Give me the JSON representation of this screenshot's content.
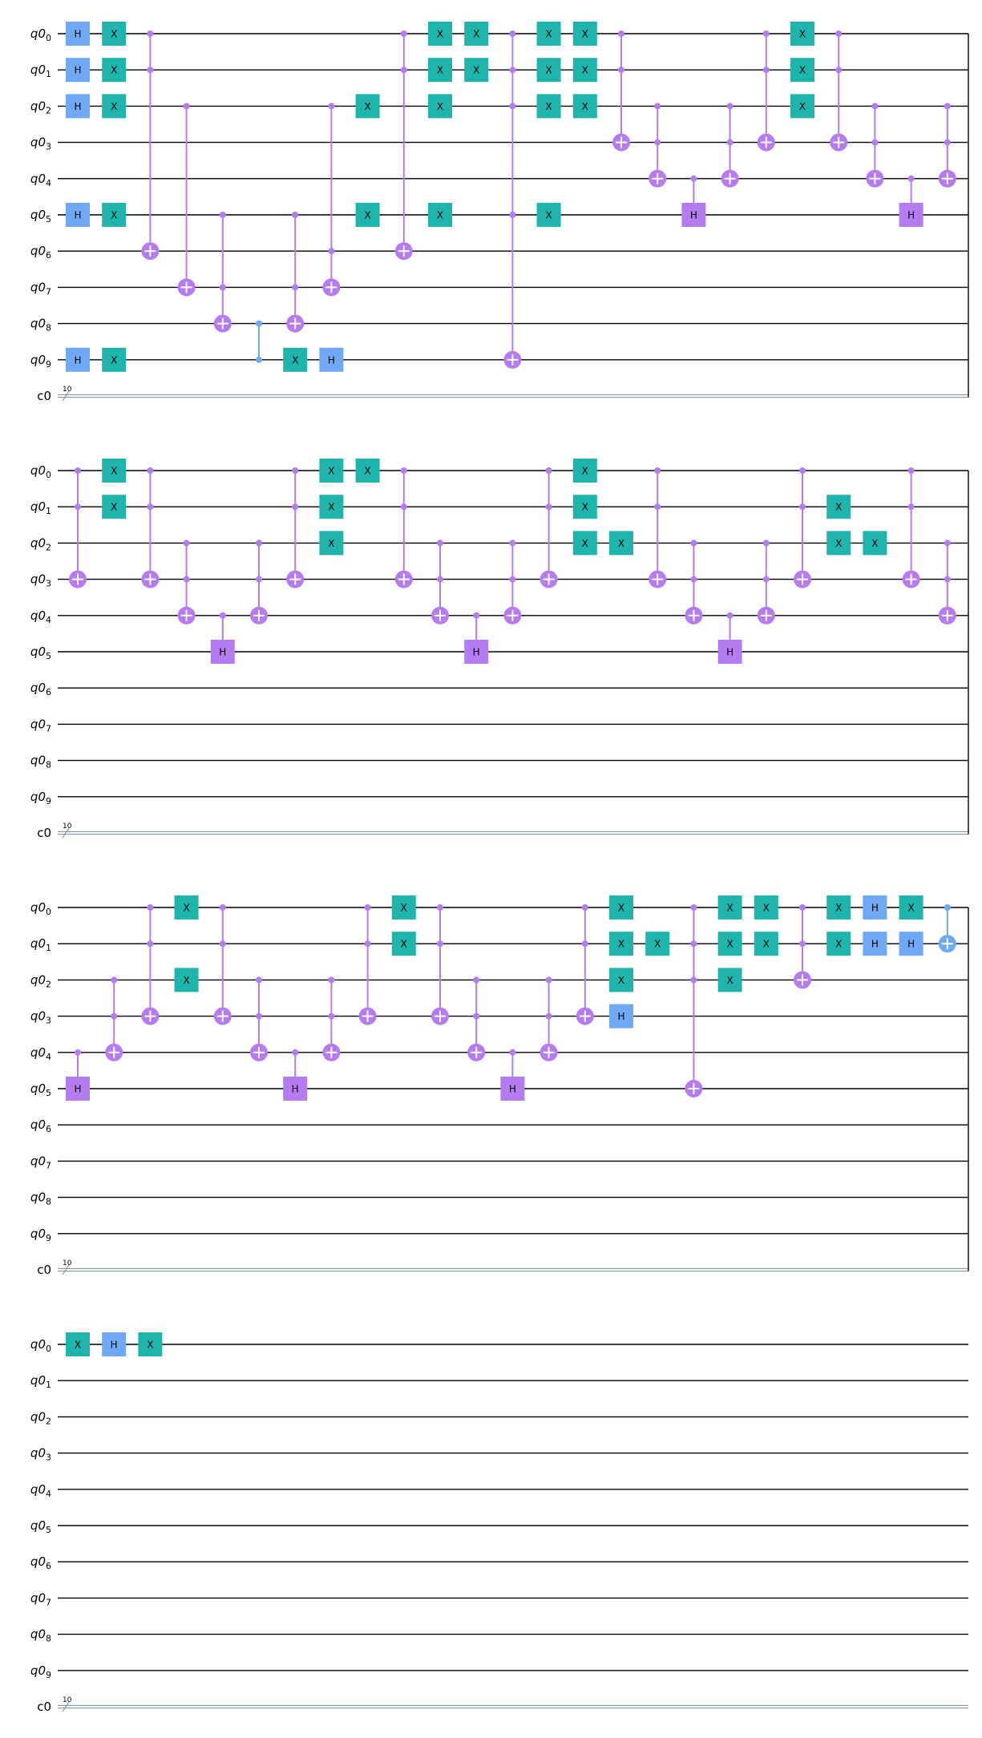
{
  "registers": {
    "qubits": [
      {
        "base": "q0",
        "index": "0"
      },
      {
        "base": "q0",
        "index": "1"
      },
      {
        "base": "q0",
        "index": "2"
      },
      {
        "base": "q0",
        "index": "3"
      },
      {
        "base": "q0",
        "index": "4"
      },
      {
        "base": "q0",
        "index": "5"
      },
      {
        "base": "q0",
        "index": "6"
      },
      {
        "base": "q0",
        "index": "7"
      },
      {
        "base": "q0",
        "index": "8"
      },
      {
        "base": "q0",
        "index": "9"
      }
    ],
    "classical": {
      "label": "c0",
      "size": "10"
    }
  },
  "colors": {
    "x_gate": "#1fb5ad",
    "h_gate": "#6fa8f5",
    "controlled_h": "#b57bf0",
    "cnot": "#b57bf0",
    "cz": "#6fa8f5",
    "cnot_q0_q1": "#6fa8f5"
  },
  "gate_labels": {
    "x": "X",
    "h": "H"
  },
  "sections": [
    {
      "wires": 10,
      "columns": [
        [
          {
            "g": "h",
            "q": 0
          },
          {
            "g": "h",
            "q": 1
          },
          {
            "g": "h",
            "q": 2
          },
          {
            "g": "h",
            "q": 5
          },
          {
            "g": "h",
            "q": 9
          }
        ],
        [
          {
            "g": "x",
            "q": 0
          },
          {
            "g": "x",
            "q": 1
          },
          {
            "g": "x",
            "q": 2
          },
          {
            "g": "x",
            "q": 5
          },
          {
            "g": "x",
            "q": 9
          }
        ],
        [
          {
            "g": "cx",
            "c": [
              0,
              1
            ],
            "t": 6
          }
        ],
        [
          {
            "g": "cx",
            "c": [
              2
            ],
            "t": 7
          }
        ],
        [
          {
            "g": "cx",
            "c": [
              5,
              7
            ],
            "t": 8
          }
        ],
        [
          {
            "g": "cz",
            "q": [
              8,
              9
            ]
          }
        ],
        [
          {
            "g": "cx",
            "c": [
              5,
              7
            ],
            "t": 8
          },
          {
            "g": "x",
            "q": 9
          }
        ],
        [
          {
            "g": "cx",
            "c": [
              2,
              6
            ],
            "t": 7
          },
          {
            "g": "h",
            "q": 9
          }
        ],
        [
          {
            "g": "x",
            "q": 2
          },
          {
            "g": "x",
            "q": 5
          }
        ],
        [
          {
            "g": "cx",
            "c": [
              0,
              1
            ],
            "t": 6
          }
        ],
        [
          {
            "g": "x",
            "q": 0
          },
          {
            "g": "x",
            "q": 1
          },
          {
            "g": "x",
            "q": 2
          },
          {
            "g": "x",
            "q": 5
          }
        ],
        [
          {
            "g": "x",
            "q": 0
          },
          {
            "g": "x",
            "q": 1
          }
        ],
        [
          {
            "g": "cx",
            "c": [
              0,
              1,
              2,
              5
            ],
            "t": 9
          }
        ],
        [
          {
            "g": "x",
            "q": 0
          },
          {
            "g": "x",
            "q": 1
          },
          {
            "g": "x",
            "q": 2
          },
          {
            "g": "x",
            "q": 5
          }
        ],
        [
          {
            "g": "x",
            "q": 0
          },
          {
            "g": "x",
            "q": 1
          },
          {
            "g": "x",
            "q": 2
          }
        ],
        [
          {
            "g": "cx",
            "c": [
              0,
              1
            ],
            "t": 3
          }
        ],
        [
          {
            "g": "cx",
            "c": [
              2,
              3
            ],
            "t": 4
          }
        ],
        [
          {
            "g": "ch",
            "c": [
              4
            ],
            "t": 5
          }
        ],
        [
          {
            "g": "cx",
            "c": [
              2,
              3
            ],
            "t": 4
          }
        ],
        [
          {
            "g": "cx",
            "c": [
              0,
              1
            ],
            "t": 3
          }
        ],
        [
          {
            "g": "x",
            "q": 0
          },
          {
            "g": "x",
            "q": 1
          },
          {
            "g": "x",
            "q": 2
          }
        ],
        [
          {
            "g": "cx",
            "c": [
              0,
              1
            ],
            "t": 3
          }
        ],
        [
          {
            "g": "cx",
            "c": [
              2,
              3
            ],
            "t": 4
          }
        ],
        [
          {
            "g": "ch",
            "c": [
              4
            ],
            "t": 5
          }
        ],
        [
          {
            "g": "cx",
            "c": [
              2,
              3
            ],
            "t": 4
          }
        ]
      ]
    },
    {
      "wires": 10,
      "columns": [
        [
          {
            "g": "cx",
            "c": [
              0,
              1
            ],
            "t": 3
          }
        ],
        [
          {
            "g": "x",
            "q": 0
          },
          {
            "g": "x",
            "q": 1
          }
        ],
        [
          {
            "g": "cx",
            "c": [
              0,
              1
            ],
            "t": 3
          }
        ],
        [
          {
            "g": "cx",
            "c": [
              2,
              3
            ],
            "t": 4
          }
        ],
        [
          {
            "g": "ch",
            "c": [
              4
            ],
            "t": 5
          }
        ],
        [
          {
            "g": "cx",
            "c": [
              2,
              3
            ],
            "t": 4
          }
        ],
        [
          {
            "g": "cx",
            "c": [
              0,
              1
            ],
            "t": 3
          }
        ],
        [
          {
            "g": "x",
            "q": 0
          },
          {
            "g": "x",
            "q": 1
          },
          {
            "g": "x",
            "q": 2
          }
        ],
        [
          {
            "g": "x",
            "q": 0
          }
        ],
        [
          {
            "g": "cx",
            "c": [
              0,
              1
            ],
            "t": 3
          }
        ],
        [
          {
            "g": "cx",
            "c": [
              2,
              3
            ],
            "t": 4
          }
        ],
        [
          {
            "g": "ch",
            "c": [
              4
            ],
            "t": 5
          }
        ],
        [
          {
            "g": "cx",
            "c": [
              2,
              3
            ],
            "t": 4
          }
        ],
        [
          {
            "g": "cx",
            "c": [
              0,
              1
            ],
            "t": 3
          }
        ],
        [
          {
            "g": "x",
            "q": 0
          },
          {
            "g": "x",
            "q": 1
          },
          {
            "g": "x",
            "q": 2
          }
        ],
        [
          {
            "g": "x",
            "q": 2
          }
        ],
        [
          {
            "g": "cx",
            "c": [
              0,
              1
            ],
            "t": 3
          }
        ],
        [
          {
            "g": "cx",
            "c": [
              2,
              3
            ],
            "t": 4
          }
        ],
        [
          {
            "g": "ch",
            "c": [
              4
            ],
            "t": 5
          }
        ],
        [
          {
            "g": "cx",
            "c": [
              2,
              3
            ],
            "t": 4
          }
        ],
        [
          {
            "g": "cx",
            "c": [
              0,
              1
            ],
            "t": 3
          }
        ],
        [
          {
            "g": "x",
            "q": 1
          },
          {
            "g": "x",
            "q": 2
          }
        ],
        [
          {
            "g": "x",
            "q": 2
          }
        ],
        [
          {
            "g": "cx",
            "c": [
              0,
              1
            ],
            "t": 3
          }
        ],
        [
          {
            "g": "cx",
            "c": [
              2,
              3
            ],
            "t": 4
          }
        ]
      ]
    },
    {
      "wires": 10,
      "columns": [
        [
          {
            "g": "ch",
            "c": [
              4
            ],
            "t": 5
          }
        ],
        [
          {
            "g": "cx",
            "c": [
              2,
              3
            ],
            "t": 4
          }
        ],
        [
          {
            "g": "cx",
            "c": [
              0,
              1
            ],
            "t": 3
          }
        ],
        [
          {
            "g": "x",
            "q": 0
          },
          {
            "g": "x",
            "q": 2
          }
        ],
        [
          {
            "g": "cx",
            "c": [
              0,
              1
            ],
            "t": 3
          }
        ],
        [
          {
            "g": "cx",
            "c": [
              2,
              3
            ],
            "t": 4
          }
        ],
        [
          {
            "g": "ch",
            "c": [
              4
            ],
            "t": 5
          }
        ],
        [
          {
            "g": "cx",
            "c": [
              2,
              3
            ],
            "t": 4
          }
        ],
        [
          {
            "g": "cx",
            "c": [
              0,
              1
            ],
            "t": 3
          }
        ],
        [
          {
            "g": "x",
            "q": 0
          },
          {
            "g": "x",
            "q": 1
          }
        ],
        [
          {
            "g": "cx",
            "c": [
              0,
              1
            ],
            "t": 3
          }
        ],
        [
          {
            "g": "cx",
            "c": [
              2,
              3
            ],
            "t": 4
          }
        ],
        [
          {
            "g": "ch",
            "c": [
              4
            ],
            "t": 5
          }
        ],
        [
          {
            "g": "cx",
            "c": [
              2,
              3
            ],
            "t": 4
          }
        ],
        [
          {
            "g": "cx",
            "c": [
              0,
              1
            ],
            "t": 3
          }
        ],
        [
          {
            "g": "x",
            "q": 0
          },
          {
            "g": "x",
            "q": 1
          },
          {
            "g": "x",
            "q": 2
          },
          {
            "g": "h",
            "q": 3
          }
        ],
        [
          {
            "g": "x",
            "q": 1
          }
        ],
        [
          {
            "g": "cx",
            "c": [
              0,
              1,
              2
            ],
            "t": 5
          }
        ],
        [
          {
            "g": "x",
            "q": 0
          },
          {
            "g": "x",
            "q": 1
          },
          {
            "g": "x",
            "q": 2
          }
        ],
        [
          {
            "g": "x",
            "q": 0
          },
          {
            "g": "x",
            "q": 1
          }
        ],
        [
          {
            "g": "cx",
            "c": [
              0,
              1
            ],
            "t": 2
          }
        ],
        [
          {
            "g": "x",
            "q": 0
          },
          {
            "g": "x",
            "q": 1
          }
        ],
        [
          {
            "g": "h",
            "q": 0
          },
          {
            "g": "h",
            "q": 1
          }
        ],
        [
          {
            "g": "x",
            "q": 0
          },
          {
            "g": "h",
            "q": 1
          }
        ],
        [
          {
            "g": "cxb",
            "c": [
              0
            ],
            "t": 1
          }
        ]
      ]
    },
    {
      "wires": 10,
      "columns": [
        [
          {
            "g": "x",
            "q": 0
          }
        ],
        [
          {
            "g": "h",
            "q": 0
          }
        ],
        [
          {
            "g": "x",
            "q": 0
          }
        ]
      ]
    }
  ]
}
